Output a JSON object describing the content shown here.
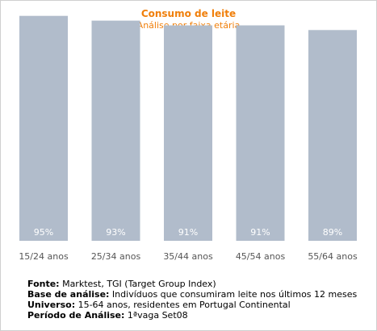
{
  "chart_data": {
    "type": "bar",
    "title": "Consumo de leite",
    "subtitle": "Análise por faixa etária",
    "categories": [
      "15/24 anos",
      "25/34 anos",
      "35/44 anos",
      "45/54 anos",
      "55/64 anos"
    ],
    "values": [
      95,
      93,
      91,
      91,
      89
    ],
    "value_labels": [
      "95%",
      "93%",
      "91%",
      "91%",
      "89%"
    ],
    "ylim": [
      0,
      100
    ],
    "grid": false,
    "bar_color": "#b1bccb",
    "label_color": "#ffffff",
    "title_color": "#f07f0a"
  },
  "notes": [
    {
      "label": "Fonte:",
      "text": " Marktest, TGI (Target Group Index)"
    },
    {
      "label": "Base de análise:",
      "text": " Indivíduos que consumiram leite nos últimos 12 meses"
    },
    {
      "label": "Universo:",
      "text": " 15-64 anos, residentes em Portugal Continental"
    },
    {
      "label": "Período de Análise:",
      "text": " 1ªvaga Set08"
    }
  ]
}
